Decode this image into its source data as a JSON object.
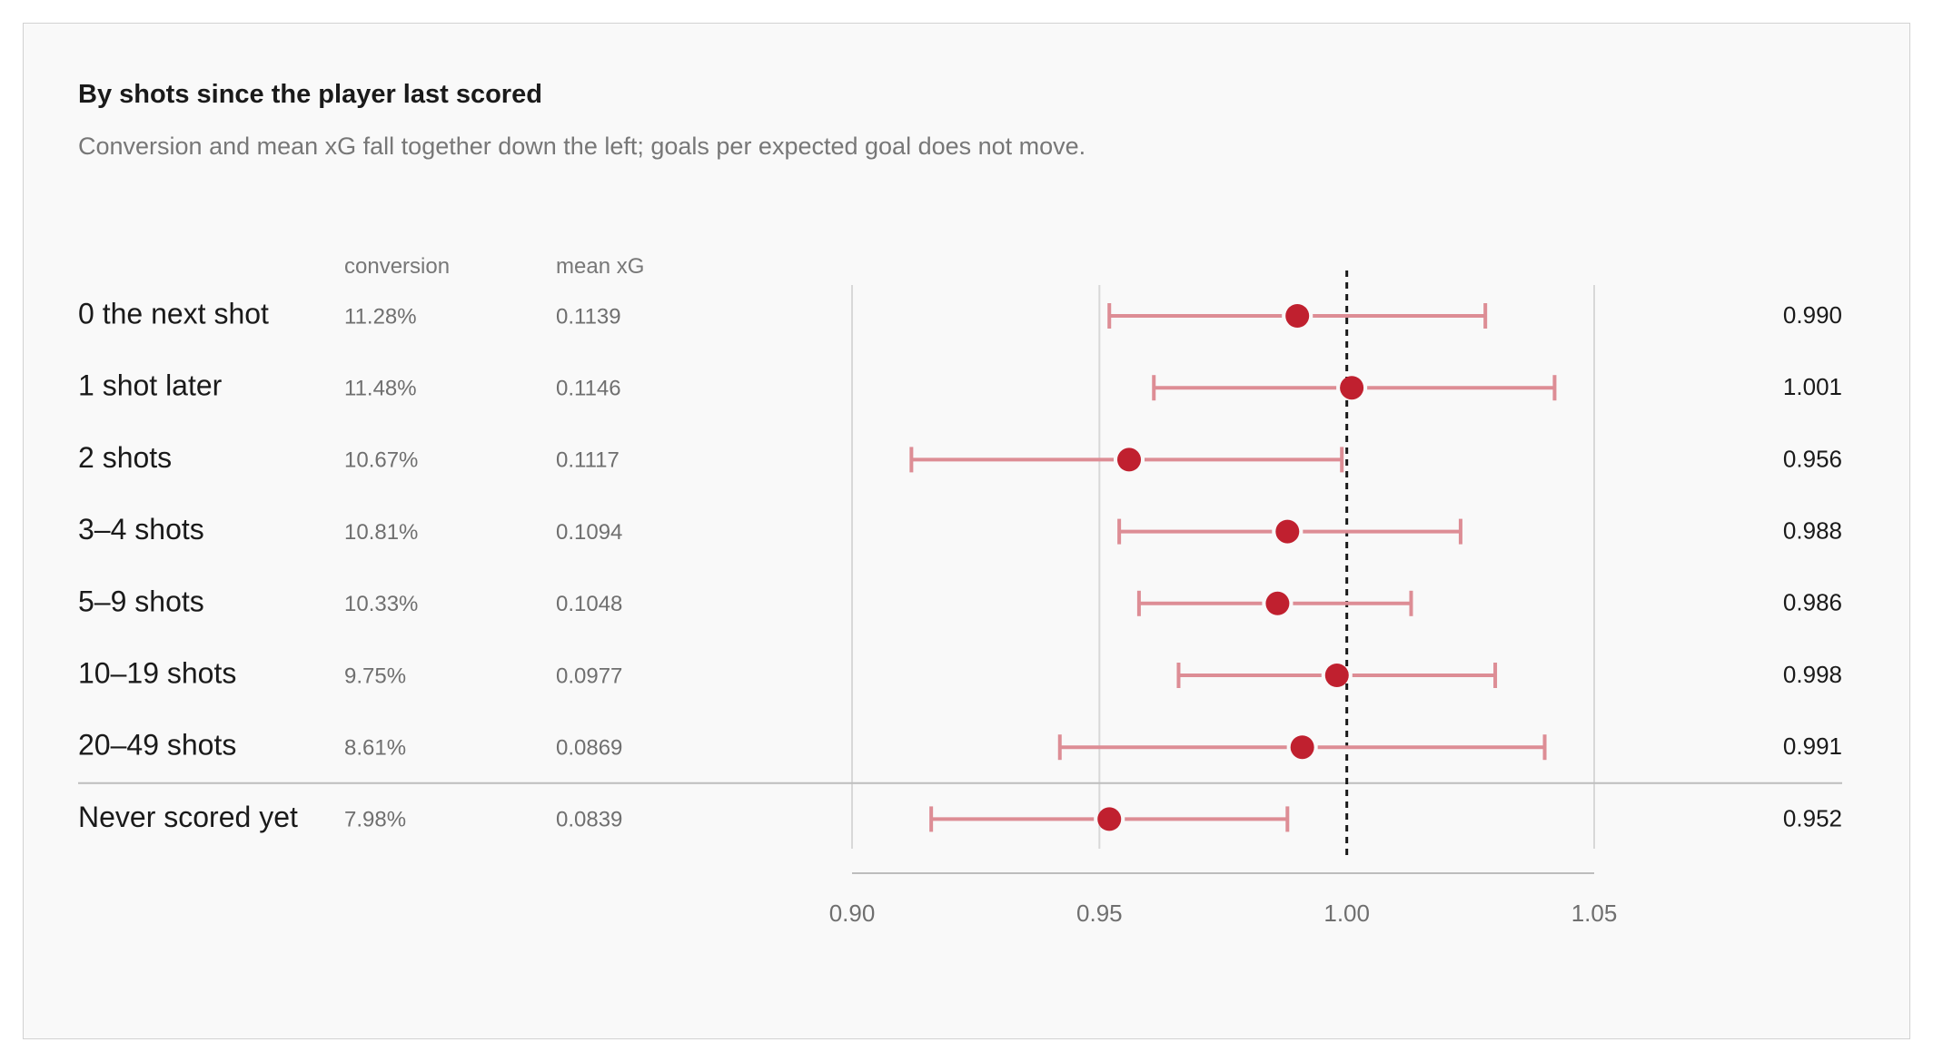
{
  "title": "By shots since the player last scored",
  "subtitle": "Conversion and mean xG fall together down the left; goals per expected goal does not move.",
  "columns": {
    "conversion": "conversion",
    "mean_xg": "mean xG"
  },
  "chart_data": {
    "type": "scatter",
    "x_ticks": [
      0.9,
      0.95,
      1.0,
      1.05
    ],
    "xlim": [
      0.9,
      1.05
    ],
    "reference_line": 1.0,
    "grid": true,
    "colors": {
      "point": "#c0202f",
      "interval": "#dd8d95",
      "reference": "#1a1a1a",
      "grid": "#d8d8d8"
    },
    "rows": [
      {
        "label": "0 the next shot",
        "conversion": "11.28%",
        "mean_xg": "0.1139",
        "value": 0.99,
        "value_label": "0.990",
        "low": 0.952,
        "high": 1.028
      },
      {
        "label": "1 shot later",
        "conversion": "11.48%",
        "mean_xg": "0.1146",
        "value": 1.001,
        "value_label": "1.001",
        "low": 0.961,
        "high": 1.042
      },
      {
        "label": "2 shots",
        "conversion": "10.67%",
        "mean_xg": "0.1117",
        "value": 0.956,
        "value_label": "0.956",
        "low": 0.912,
        "high": 0.999
      },
      {
        "label": "3–4 shots",
        "conversion": "10.81%",
        "mean_xg": "0.1094",
        "value": 0.988,
        "value_label": "0.988",
        "low": 0.954,
        "high": 1.023
      },
      {
        "label": "5–9 shots",
        "conversion": "10.33%",
        "mean_xg": "0.1048",
        "value": 0.986,
        "value_label": "0.986",
        "low": 0.958,
        "high": 1.013
      },
      {
        "label": "10–19 shots",
        "conversion": "9.75%",
        "mean_xg": "0.0977",
        "value": 0.998,
        "value_label": "0.998",
        "low": 0.966,
        "high": 1.03
      },
      {
        "label": "20–49 shots",
        "conversion": "8.61%",
        "mean_xg": "0.0869",
        "value": 0.991,
        "value_label": "0.991",
        "low": 0.942,
        "high": 1.04
      },
      {
        "label": "Never scored yet",
        "conversion": "7.98%",
        "mean_xg": "0.0839",
        "value": 0.952,
        "value_label": "0.952",
        "low": 0.916,
        "high": 0.988
      }
    ]
  }
}
